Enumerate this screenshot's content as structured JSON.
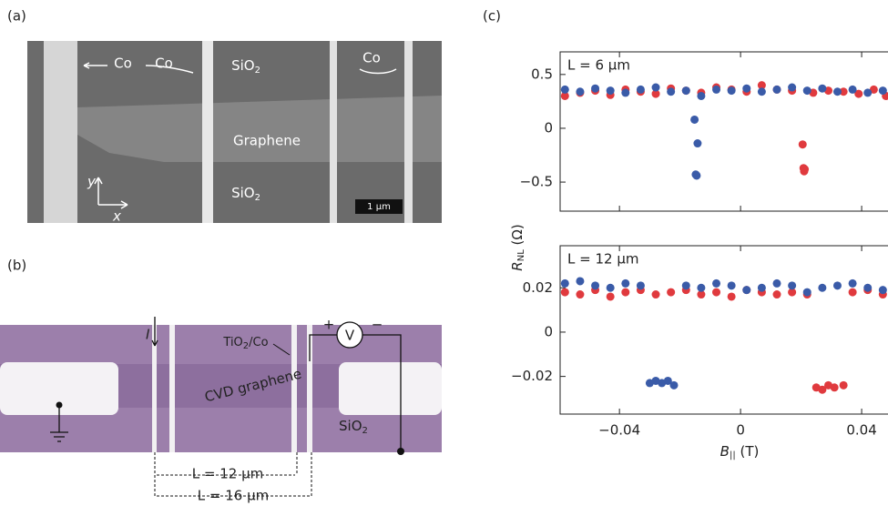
{
  "panel_a": {
    "label": "(a)",
    "co": [
      "Co",
      "Co",
      "Co"
    ],
    "sio2_top": {
      "base": "SiO",
      "sub": "2"
    },
    "graphene": "Graphene",
    "sio2_bottom": {
      "base": "SiO",
      "sub": "2"
    },
    "axis_y": "y",
    "axis_x": "x",
    "scale_bar": "1 μm"
  },
  "panel_b": {
    "label": "(b)",
    "current": "I",
    "plus": "+",
    "voltmeter": "V",
    "minus": "−",
    "contact": {
      "base": "TiO",
      "sub": "2",
      "rest": "/Co"
    },
    "channel": "CVD graphene",
    "substrate": {
      "base": "SiO",
      "sub": "2"
    },
    "length_inner": "L = 12 μm",
    "length_outer": "L = 16 μm"
  },
  "panel_c": {
    "label": "(c)",
    "ylabel": {
      "main": "R",
      "sub": "NL",
      "unit": " (Ω)"
    },
    "xlabel": {
      "main": "B",
      "sub": "||",
      "unit": " (T)"
    }
  },
  "chart_data": [
    {
      "type": "scatter",
      "annotation": "L = 6 μm",
      "xlim": [
        -0.0596,
        0.0487
      ],
      "ylim": [
        -0.77,
        0.71
      ],
      "xticks": [
        -0.04,
        0,
        0.04
      ],
      "xtick_labels": false,
      "yticks": [
        {
          "value": -0.5,
          "label": "−0.5"
        },
        0,
        0.5
      ],
      "series": [
        {
          "color": "#e03a3e",
          "x": [
            -0.058,
            -0.053,
            -0.048,
            -0.043,
            -0.038,
            -0.033,
            -0.028,
            -0.023,
            -0.018,
            -0.013,
            -0.008,
            -0.003,
            0.002,
            0.007,
            0.012,
            0.017,
            0.0205,
            0.0208,
            0.021,
            0.0212,
            0.024,
            0.029,
            0.034,
            0.039,
            0.044,
            0.048
          ],
          "values": [
            0.3,
            0.33,
            0.35,
            0.31,
            0.36,
            0.34,
            0.32,
            0.37,
            0.35,
            0.33,
            0.38,
            0.36,
            0.34,
            0.4,
            0.36,
            0.35,
            -0.15,
            -0.37,
            -0.4,
            -0.38,
            0.33,
            0.35,
            0.34,
            0.32,
            0.36,
            0.3
          ]
        },
        {
          "color": "#3a5ba8",
          "x": [
            -0.058,
            -0.053,
            -0.048,
            -0.043,
            -0.038,
            -0.033,
            -0.028,
            -0.023,
            -0.018,
            -0.0152,
            -0.0148,
            -0.0145,
            -0.0142,
            -0.013,
            -0.008,
            -0.003,
            0.002,
            0.007,
            0.012,
            0.017,
            0.022,
            0.027,
            0.032,
            0.037,
            0.042,
            0.047
          ],
          "values": [
            0.36,
            0.34,
            0.37,
            0.35,
            0.33,
            0.36,
            0.38,
            0.34,
            0.35,
            0.08,
            -0.43,
            -0.44,
            -0.14,
            0.3,
            0.36,
            0.35,
            0.37,
            0.34,
            0.36,
            0.38,
            0.35,
            0.37,
            0.34,
            0.36,
            0.33,
            0.35
          ]
        }
      ]
    },
    {
      "type": "scatter",
      "annotation": "L = 12 μm",
      "xlim": [
        -0.0596,
        0.0487
      ],
      "ylim": [
        -0.037,
        0.039
      ],
      "xticks": [
        {
          "value": -0.04,
          "label": "−0.04"
        },
        0,
        0.04
      ],
      "xtick_labels": true,
      "yticks": [
        {
          "value": -0.02,
          "label": "−0.02"
        },
        0,
        0.02
      ],
      "series": [
        {
          "color": "#e03a3e",
          "x": [
            -0.058,
            -0.053,
            -0.048,
            -0.043,
            -0.038,
            -0.033,
            -0.028,
            -0.023,
            -0.018,
            -0.013,
            -0.008,
            -0.003,
            0.002,
            0.007,
            0.012,
            0.017,
            0.022,
            0.025,
            0.027,
            0.029,
            0.031,
            0.034,
            0.037,
            0.042,
            0.047
          ],
          "values": [
            0.018,
            0.017,
            0.019,
            0.016,
            0.018,
            0.019,
            0.017,
            0.018,
            0.019,
            0.017,
            0.018,
            0.016,
            0.019,
            0.018,
            0.017,
            0.018,
            0.017,
            -0.025,
            -0.026,
            -0.024,
            -0.025,
            -0.024,
            0.018,
            0.019,
            0.017
          ]
        },
        {
          "color": "#3a5ba8",
          "x": [
            -0.058,
            -0.053,
            -0.048,
            -0.043,
            -0.038,
            -0.033,
            -0.03,
            -0.028,
            -0.026,
            -0.024,
            -0.022,
            -0.018,
            -0.013,
            -0.008,
            -0.003,
            0.002,
            0.007,
            0.012,
            0.017,
            0.022,
            0.027,
            0.032,
            0.037,
            0.042,
            0.047
          ],
          "values": [
            0.022,
            0.023,
            0.021,
            0.02,
            0.022,
            0.021,
            -0.023,
            -0.022,
            -0.023,
            -0.022,
            -0.024,
            0.021,
            0.02,
            0.022,
            0.021,
            0.019,
            0.02,
            0.022,
            0.021,
            0.018,
            0.02,
            0.021,
            0.022,
            0.02,
            0.019
          ]
        }
      ]
    }
  ]
}
